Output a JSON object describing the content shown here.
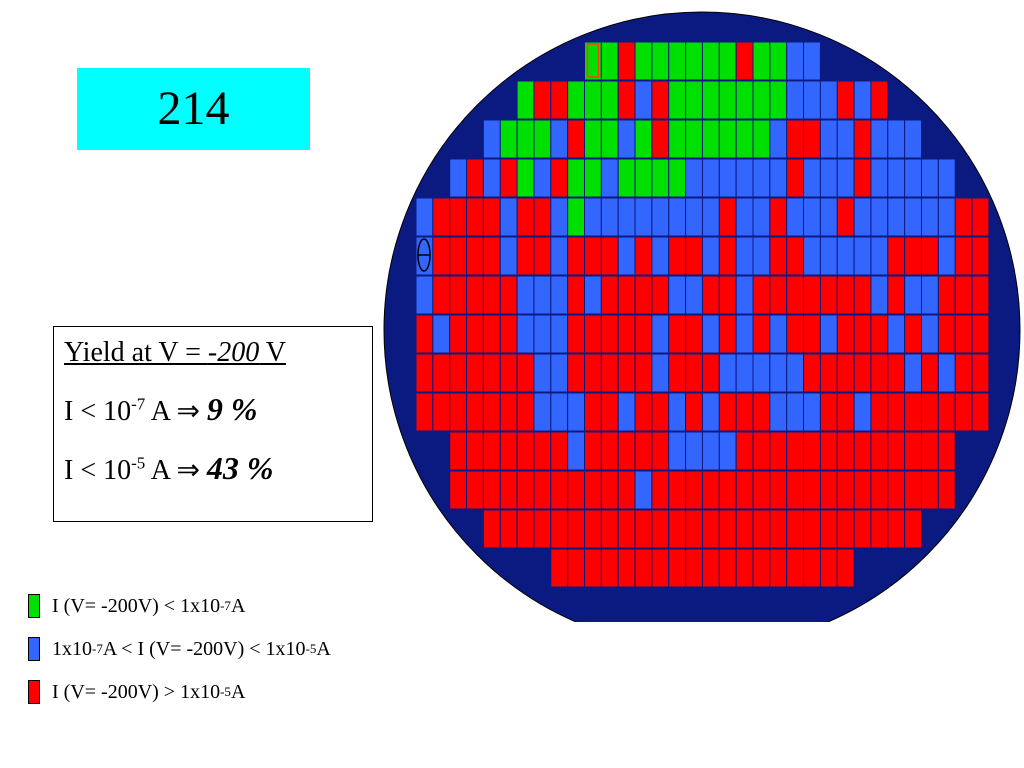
{
  "label_box": "214",
  "yield": {
    "heading": {
      "prefix": "Yield at V = ",
      "voltage": "-200",
      "suffix": " V"
    },
    "lines": [
      {
        "base": "I < 10",
        "exp": "-7",
        "unit": " A ",
        "arrow": "⇒",
        "result": "9 %"
      },
      {
        "base": "I < 10",
        "exp": "-5",
        "unit": " A ",
        "arrow": "⇒",
        "result": "43 %"
      }
    ]
  },
  "legend": [
    {
      "color": "#00e000",
      "segments": [
        {
          "text": "I (V= -200V) < 1x10"
        },
        {
          "sup": "-7"
        },
        {
          "text": "A"
        }
      ]
    },
    {
      "color": "#3366ff",
      "segments": [
        {
          "text": "1x10"
        },
        {
          "sup": "-7"
        },
        {
          "text": "A < I (V= -200V) < 1x10"
        },
        {
          "sup": "-5"
        },
        {
          "text": "A"
        }
      ]
    },
    {
      "color": "#ff0000",
      "segments": [
        {
          "text": "I (V= -200V) > 1x10"
        },
        {
          "sup": "-5"
        },
        {
          "text": "A"
        }
      ]
    }
  ]
}
